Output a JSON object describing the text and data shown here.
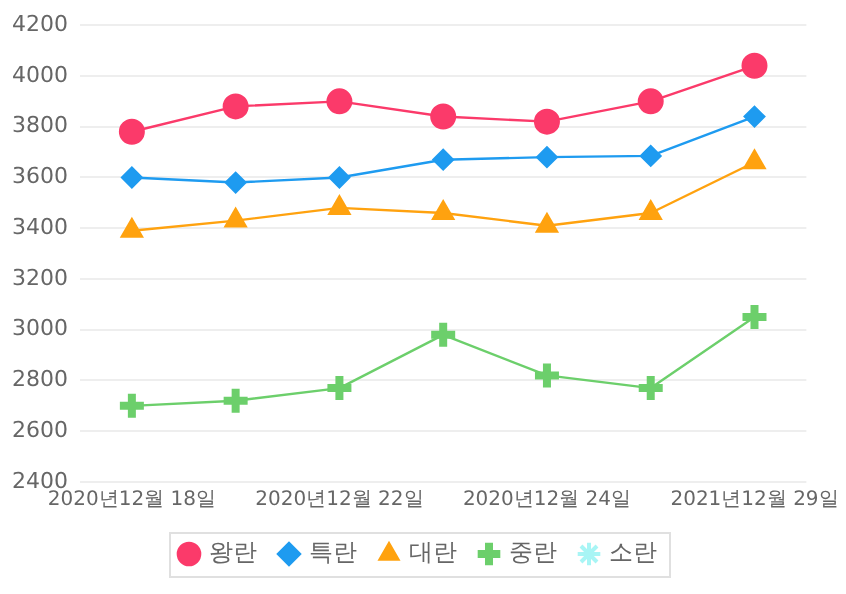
{
  "chart_data": {
    "type": "line",
    "categories": [
      "2020년12월 18일",
      null,
      "2020년12월 22일",
      null,
      "2020년12월 24일",
      null,
      "2021년12월 29일"
    ],
    "series": [
      {
        "name": "왕란",
        "color": "#fb3a6a",
        "marker": "circle",
        "values": [
          3780,
          3880,
          3900,
          3840,
          3820,
          3900,
          4040
        ]
      },
      {
        "name": "특란",
        "color": "#1e9bf0",
        "marker": "diamond",
        "values": [
          3600,
          3580,
          3600,
          3670,
          3680,
          3685,
          3840
        ]
      },
      {
        "name": "대란",
        "color": "#ffa20f",
        "marker": "triangle",
        "values": [
          3390,
          3430,
          3480,
          3460,
          3410,
          3460,
          3660
        ]
      },
      {
        "name": "중란",
        "color": "#6ccf6b",
        "marker": "cross",
        "values": [
          2700,
          2720,
          2770,
          2980,
          2820,
          2770,
          3050
        ]
      },
      {
        "name": "소란",
        "color": "#a8f5f5",
        "marker": "star",
        "values": [
          null,
          null,
          null,
          null,
          null,
          null,
          null
        ]
      }
    ],
    "ylim": [
      2400,
      4200
    ],
    "yticks": [
      2400,
      2600,
      2800,
      3000,
      3200,
      3400,
      3600,
      3800,
      4000,
      4200
    ],
    "grid": "y",
    "legend": "bottom"
  }
}
